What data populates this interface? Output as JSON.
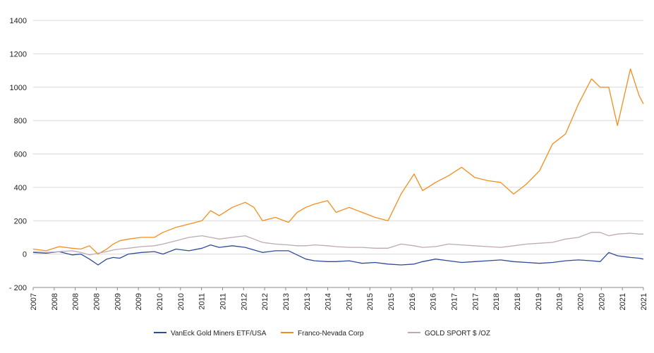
{
  "chart_data": {
    "type": "line",
    "title": "",
    "xlabel": "",
    "ylabel": "",
    "ylim": [
      -200,
      1400
    ],
    "yticks": [
      -200,
      0,
      200,
      400,
      600,
      800,
      1000,
      1200,
      1400
    ],
    "ytick_labels": [
      "- 200",
      "0",
      "200",
      "400",
      "600",
      "800",
      "1000",
      "1200",
      "1400"
    ],
    "xlim": [
      2007.0,
      2021.1
    ],
    "xtick_labels": [
      "2007",
      "2008",
      "2008",
      "2008",
      "2009",
      "2009",
      "2010",
      "2010",
      "2011",
      "2011",
      "2012",
      "2012",
      "2013",
      "2013",
      "2014",
      "2014",
      "2015",
      "2015",
      "2016",
      "2016",
      "2017",
      "2017",
      "2018",
      "2018",
      "2019",
      "2019",
      "2020",
      "2020",
      "2021",
      "2021"
    ],
    "grid": "horizontal",
    "legend": "bottom",
    "series": [
      {
        "name": "VanEck Gold Miners ETF/USA",
        "color": "#2e4a9a",
        "x": [
          2007.0,
          2007.3,
          2007.6,
          2007.9,
          2008.1,
          2008.3,
          2008.5,
          2008.7,
          2008.85,
          2009.0,
          2009.2,
          2009.5,
          2009.8,
          2010.0,
          2010.3,
          2010.6,
          2010.9,
          2011.1,
          2011.3,
          2011.6,
          2011.9,
          2012.1,
          2012.3,
          2012.6,
          2012.9,
          2013.1,
          2013.3,
          2013.5,
          2013.8,
          2014.0,
          2014.3,
          2014.6,
          2014.9,
          2015.2,
          2015.5,
          2015.8,
          2016.0,
          2016.3,
          2016.6,
          2016.9,
          2017.2,
          2017.5,
          2017.8,
          2018.1,
          2018.4,
          2018.7,
          2019.0,
          2019.3,
          2019.6,
          2019.9,
          2020.1,
          2020.3,
          2020.5,
          2020.8,
          2021.0,
          2021.1
        ],
        "y": [
          10,
          5,
          15,
          -5,
          0,
          -30,
          -65,
          -30,
          -20,
          -25,
          0,
          10,
          15,
          0,
          30,
          20,
          35,
          55,
          40,
          50,
          40,
          25,
          10,
          20,
          20,
          -5,
          -30,
          -40,
          -45,
          -45,
          -40,
          -55,
          -50,
          -60,
          -65,
          -60,
          -45,
          -30,
          -40,
          -50,
          -45,
          -40,
          -35,
          -45,
          -50,
          -55,
          -50,
          -40,
          -35,
          -40,
          -45,
          10,
          -10,
          -20,
          -25,
          -30
        ]
      },
      {
        "name": "Franco-Nevada Corp",
        "color": "#f28e1e",
        "x": [
          2007.0,
          2007.3,
          2007.6,
          2007.9,
          2008.1,
          2008.3,
          2008.5,
          2008.7,
          2008.85,
          2009.0,
          2009.2,
          2009.5,
          2009.8,
          2010.0,
          2010.3,
          2010.6,
          2010.9,
          2011.1,
          2011.3,
          2011.6,
          2011.9,
          2012.1,
          2012.3,
          2012.6,
          2012.9,
          2013.1,
          2013.3,
          2013.5,
          2013.8,
          2014.0,
          2014.3,
          2014.6,
          2014.9,
          2015.2,
          2015.5,
          2015.8,
          2016.0,
          2016.3,
          2016.6,
          2016.9,
          2017.2,
          2017.5,
          2017.8,
          2018.1,
          2018.4,
          2018.7,
          2019.0,
          2019.3,
          2019.6,
          2019.9,
          2020.1,
          2020.3,
          2020.5,
          2020.8,
          2021.0,
          2021.1
        ],
        "y": [
          30,
          20,
          45,
          35,
          30,
          50,
          0,
          30,
          60,
          80,
          90,
          100,
          100,
          130,
          160,
          180,
          200,
          260,
          230,
          280,
          310,
          280,
          200,
          220,
          190,
          250,
          280,
          300,
          320,
          250,
          280,
          250,
          220,
          200,
          360,
          480,
          380,
          430,
          470,
          520,
          460,
          440,
          430,
          360,
          420,
          500,
          660,
          720,
          900,
          1050,
          1000,
          1000,
          770,
          1110,
          950,
          900
        ]
      },
      {
        "name": "GOLD SPORT $ /OZ",
        "color": "#bfa9b4",
        "x": [
          2007.0,
          2007.3,
          2007.6,
          2007.9,
          2008.1,
          2008.3,
          2008.5,
          2008.7,
          2008.85,
          2009.0,
          2009.2,
          2009.5,
          2009.8,
          2010.0,
          2010.3,
          2010.6,
          2010.9,
          2011.1,
          2011.3,
          2011.6,
          2011.9,
          2012.1,
          2012.3,
          2012.6,
          2012.9,
          2013.1,
          2013.3,
          2013.5,
          2013.8,
          2014.0,
          2014.3,
          2014.6,
          2014.9,
          2015.2,
          2015.5,
          2015.8,
          2016.0,
          2016.3,
          2016.6,
          2016.9,
          2017.2,
          2017.5,
          2017.8,
          2018.1,
          2018.4,
          2018.7,
          2019.0,
          2019.3,
          2019.6,
          2019.9,
          2020.1,
          2020.3,
          2020.5,
          2020.8,
          2021.0,
          2021.1
        ],
        "y": [
          15,
          10,
          15,
          20,
          10,
          -5,
          5,
          15,
          25,
          30,
          35,
          45,
          50,
          60,
          80,
          100,
          110,
          100,
          90,
          100,
          110,
          90,
          70,
          60,
          55,
          50,
          50,
          55,
          50,
          45,
          40,
          40,
          35,
          35,
          60,
          50,
          40,
          45,
          60,
          55,
          50,
          45,
          40,
          50,
          60,
          65,
          70,
          90,
          100,
          130,
          130,
          110,
          120,
          125,
          120,
          120
        ]
      }
    ]
  }
}
